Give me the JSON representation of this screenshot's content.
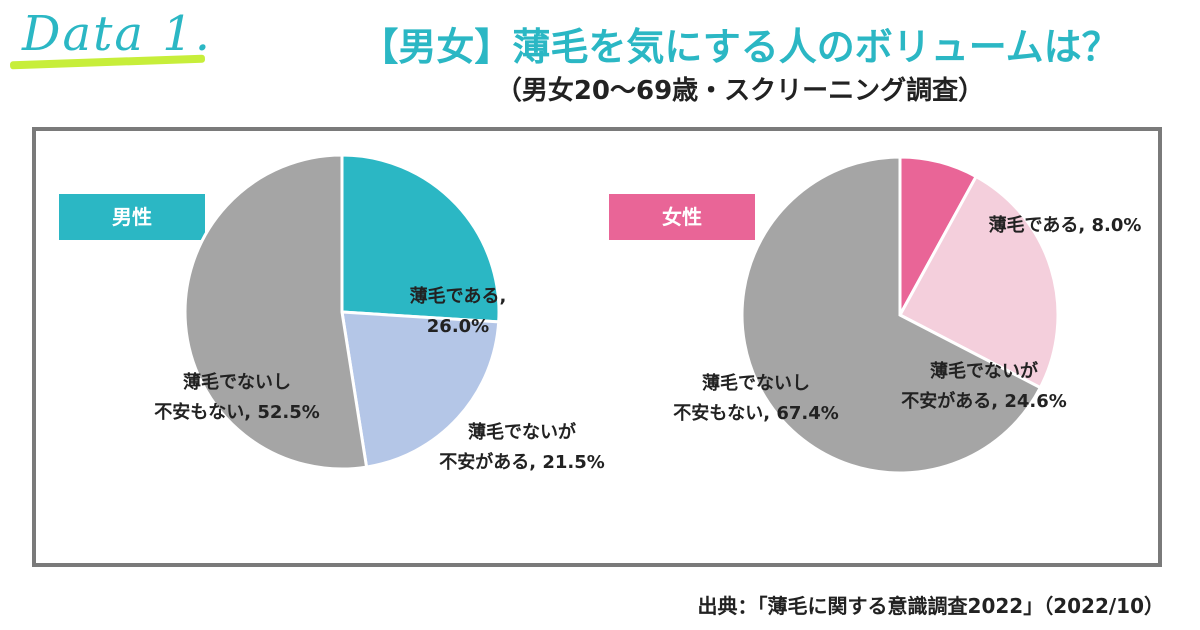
{
  "header": {
    "data_label": "Data 1.",
    "title": "【男女】薄毛を気にする人のボリュームは？",
    "subtitle": "（男女20～69歳・スクリーニング調査）"
  },
  "source": "出典：「薄毛に関する意識調査2022」（2022/10）",
  "colors": {
    "accent": "#2bb7c4",
    "male_badge": "#2bb7c4",
    "female_badge": "#e96597",
    "frame": "#7a7a7a",
    "highlight": "#c7ee3a"
  },
  "chart_data": [
    {
      "type": "pie",
      "title": "男性",
      "slices": [
        {
          "label": "薄毛である,",
          "value": 26.0,
          "value_text": "26.0%",
          "color": "#2bb7c4"
        },
        {
          "label": "薄毛でないが",
          "label2": "不安がある,",
          "value": 21.5,
          "value_text": "21.5%",
          "color": "#b4c6e7"
        },
        {
          "label": "薄毛でないし",
          "label2": "不安もない,",
          "value": 52.5,
          "value_text": "52.5%",
          "color": "#a5a5a5"
        }
      ]
    },
    {
      "type": "pie",
      "title": "女性",
      "slices": [
        {
          "label": "薄毛である,",
          "value": 8.0,
          "value_text": "8.0%",
          "color": "#e96597"
        },
        {
          "label": "薄毛でないが",
          "label2": "不安がある,",
          "value": 24.6,
          "value_text": "24.6%",
          "color": "#f4cfdc"
        },
        {
          "label": "薄毛でないし",
          "label2": "不安もない,",
          "value": 67.4,
          "value_text": "67.4%",
          "color": "#a5a5a5"
        }
      ]
    }
  ]
}
